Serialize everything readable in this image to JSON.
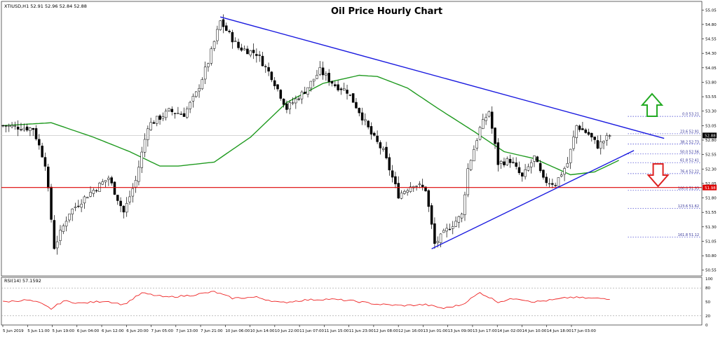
{
  "header": {
    "title": "Oil Price Hourly Chart",
    "symbol_info": "XTIUSD,H1  52.91 52.96 52.84 52.88"
  },
  "rsi_panel": {
    "label": "RSI(14) 57.1592"
  },
  "colors": {
    "background": "#ffffff",
    "candle": "#000000",
    "moving_average": "#1f9a1f",
    "rsi_line": "#ee2222",
    "trendline": "#1a1adf",
    "support_line": "#dd0000",
    "fib_levels": "#3333cc",
    "up_arrow": "#22aa22",
    "down_arrow": "#dd2222",
    "price_label_bg": "#000000",
    "support_label_bg": "#dd0000"
  },
  "icons": {
    "up_arrow": "green-hollow-up-arrow",
    "down_arrow": "red-hollow-down-arrow"
  },
  "chart_data": [
    {
      "type": "candlestick",
      "title": "Oil Price Hourly Chart",
      "xlabel": "",
      "ylabel": "",
      "x_ticks": [
        "5 Jun 2019",
        "5 Jun 11:00",
        "5 Jun 19:00",
        "6 Jun 04:00",
        "6 Jun 12:00",
        "6 Jun 20:00",
        "7 Jun 05:00",
        "7 Jun 13:00",
        "7 Jun 21:00",
        "10 Jun 06:00",
        "10 Jun 14:00",
        "10 Jun 22:00",
        "11 Jun 07:00",
        "11 Jun 15:00",
        "11 Jun 23:00",
        "12 Jun 08:00",
        "12 Jun 16:00",
        "13 Jun 01:00",
        "13 Jun 09:00",
        "13 Jun 17:00",
        "14 Jun 02:00",
        "14 Jun 10:00",
        "14 Jun 18:00",
        "17 Jun 03:00"
      ],
      "y_ticks": [
        "55.05",
        "54.80",
        "54.55",
        "54.30",
        "54.05",
        "53.80",
        "53.55",
        "53.30",
        "53.05",
        "52.80",
        "52.55",
        "52.30",
        "52.05",
        "51.80",
        "51.55",
        "51.30",
        "51.05",
        "50.80",
        "50.55"
      ],
      "ylim": [
        50.45,
        55.15
      ],
      "current_price": {
        "label": "52.88",
        "value": 52.88
      },
      "horizontal_support": {
        "label": "51.98",
        "value": 51.98
      },
      "fibonacci_levels": [
        {
          "label": "0.0 53.21",
          "value": 53.21
        },
        {
          "label": "23.6 52.91",
          "value": 52.91
        },
        {
          "label": "38.2 52.73",
          "value": 52.73
        },
        {
          "label": "50.0 52.56",
          "value": 52.56
        },
        {
          "label": "61.8 52.41",
          "value": 52.41
        },
        {
          "label": "76.4 52.22",
          "value": 52.22
        },
        {
          "label": "100.0 51.93",
          "value": 51.93
        },
        {
          "label": "123.6 51.62",
          "value": 51.62
        },
        {
          "label": "161.8 51.12",
          "value": 51.12
        }
      ],
      "trendlines": [
        {
          "role": "descending-resistance",
          "from": {
            "bar": 72,
            "price": 54.93
          },
          "to": {
            "bar": 219,
            "price": 52.83
          }
        },
        {
          "role": "ascending-support",
          "from": {
            "bar": 142,
            "price": 50.92
          },
          "to": {
            "bar": 209,
            "price": 52.62
          }
        }
      ],
      "close_series_keypoints": [
        {
          "bar": 0,
          "price": 53.05
        },
        {
          "bar": 10,
          "price": 53.0
        },
        {
          "bar": 14,
          "price": 52.4
        },
        {
          "bar": 17,
          "price": 50.95
        },
        {
          "bar": 22,
          "price": 51.55
        },
        {
          "bar": 28,
          "price": 51.85
        },
        {
          "bar": 35,
          "price": 52.15
        },
        {
          "bar": 40,
          "price": 51.55
        },
        {
          "bar": 44,
          "price": 52.1
        },
        {
          "bar": 48,
          "price": 53.05
        },
        {
          "bar": 55,
          "price": 53.3
        },
        {
          "bar": 60,
          "price": 53.25
        },
        {
          "bar": 64,
          "price": 53.6
        },
        {
          "bar": 68,
          "price": 54.15
        },
        {
          "bar": 72,
          "price": 54.85
        },
        {
          "bar": 78,
          "price": 54.4
        },
        {
          "bar": 84,
          "price": 54.3
        },
        {
          "bar": 89,
          "price": 53.9
        },
        {
          "bar": 94,
          "price": 53.35
        },
        {
          "bar": 100,
          "price": 53.65
        },
        {
          "bar": 105,
          "price": 54.0
        },
        {
          "bar": 110,
          "price": 53.75
        },
        {
          "bar": 114,
          "price": 53.65
        },
        {
          "bar": 118,
          "price": 53.3
        },
        {
          "bar": 122,
          "price": 52.9
        },
        {
          "bar": 126,
          "price": 52.6
        },
        {
          "bar": 131,
          "price": 51.85
        },
        {
          "bar": 136,
          "price": 52.05
        },
        {
          "bar": 140,
          "price": 51.95
        },
        {
          "bar": 143,
          "price": 51.0
        },
        {
          "bar": 148,
          "price": 51.3
        },
        {
          "bar": 152,
          "price": 51.5
        },
        {
          "bar": 154,
          "price": 52.3
        },
        {
          "bar": 158,
          "price": 53.0
        },
        {
          "bar": 161,
          "price": 53.3
        },
        {
          "bar": 164,
          "price": 52.4
        },
        {
          "bar": 168,
          "price": 52.45
        },
        {
          "bar": 172,
          "price": 52.15
        },
        {
          "bar": 176,
          "price": 52.5
        },
        {
          "bar": 179,
          "price": 52.1
        },
        {
          "bar": 183,
          "price": 52.05
        },
        {
          "bar": 187,
          "price": 52.4
        },
        {
          "bar": 190,
          "price": 53.05
        },
        {
          "bar": 194,
          "price": 52.9
        },
        {
          "bar": 197,
          "price": 52.7
        },
        {
          "bar": 201,
          "price": 52.88
        }
      ],
      "moving_average_keypoints": [
        {
          "bar": 0,
          "price": 53.05
        },
        {
          "bar": 16,
          "price": 53.1
        },
        {
          "bar": 30,
          "price": 52.85
        },
        {
          "bar": 42,
          "price": 52.6
        },
        {
          "bar": 52,
          "price": 52.35
        },
        {
          "bar": 58,
          "price": 52.35
        },
        {
          "bar": 70,
          "price": 52.42
        },
        {
          "bar": 82,
          "price": 52.85
        },
        {
          "bar": 94,
          "price": 53.45
        },
        {
          "bar": 106,
          "price": 53.78
        },
        {
          "bar": 118,
          "price": 53.92
        },
        {
          "bar": 124,
          "price": 53.9
        },
        {
          "bar": 134,
          "price": 53.7
        },
        {
          "bar": 144,
          "price": 53.35
        },
        {
          "bar": 156,
          "price": 52.95
        },
        {
          "bar": 166,
          "price": 52.6
        },
        {
          "bar": 176,
          "price": 52.48
        },
        {
          "bar": 188,
          "price": 52.2
        },
        {
          "bar": 196,
          "price": 52.25
        },
        {
          "bar": 204,
          "price": 52.45
        }
      ]
    },
    {
      "type": "line",
      "title": "RSI(14) 57.1592",
      "y_ticks": [
        "100",
        "80",
        "50",
        "20",
        "0"
      ],
      "ylim": [
        0,
        100
      ],
      "values_keypoints": [
        {
          "bar": 0,
          "value": 50
        },
        {
          "bar": 8,
          "value": 54
        },
        {
          "bar": 12,
          "value": 48
        },
        {
          "bar": 16,
          "value": 35
        },
        {
          "bar": 20,
          "value": 52
        },
        {
          "bar": 26,
          "value": 47
        },
        {
          "bar": 34,
          "value": 52
        },
        {
          "bar": 40,
          "value": 44
        },
        {
          "bar": 46,
          "value": 69
        },
        {
          "bar": 54,
          "value": 60
        },
        {
          "bar": 62,
          "value": 64
        },
        {
          "bar": 70,
          "value": 72
        },
        {
          "bar": 76,
          "value": 58
        },
        {
          "bar": 84,
          "value": 60
        },
        {
          "bar": 92,
          "value": 48
        },
        {
          "bar": 100,
          "value": 54
        },
        {
          "bar": 108,
          "value": 56
        },
        {
          "bar": 116,
          "value": 52
        },
        {
          "bar": 124,
          "value": 45
        },
        {
          "bar": 132,
          "value": 42
        },
        {
          "bar": 140,
          "value": 44
        },
        {
          "bar": 146,
          "value": 36
        },
        {
          "bar": 152,
          "value": 44
        },
        {
          "bar": 158,
          "value": 70
        },
        {
          "bar": 164,
          "value": 50
        },
        {
          "bar": 170,
          "value": 58
        },
        {
          "bar": 176,
          "value": 50
        },
        {
          "bar": 182,
          "value": 54
        },
        {
          "bar": 188,
          "value": 60
        },
        {
          "bar": 194,
          "value": 58
        },
        {
          "bar": 201,
          "value": 57
        }
      ]
    }
  ]
}
